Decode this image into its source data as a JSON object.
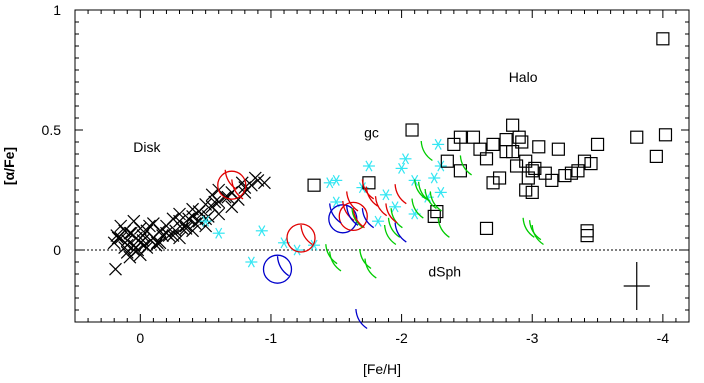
{
  "chart_data": {
    "type": "scatter",
    "title": "",
    "xlabel": "[Fe/H]",
    "ylabel": "[α/Fe]",
    "xlim": [
      0.5,
      -4.2
    ],
    "ylim": [
      -0.3,
      1.0
    ],
    "x_ticks": [
      0,
      -1,
      -2,
      -3,
      -4
    ],
    "x_tick_labels": [
      "0",
      "-1",
      "-2",
      "-3",
      "-4"
    ],
    "y_ticks": [
      0,
      0.5,
      1
    ],
    "y_tick_labels": [
      "0",
      "0.5",
      "1"
    ],
    "reference_line_y": 0,
    "annotations": [
      {
        "text": "Disk",
        "x": -0.05,
        "y": 0.43
      },
      {
        "text": "gc",
        "x": -1.77,
        "y": 0.49
      },
      {
        "text": "Halo",
        "x": -2.93,
        "y": 0.72
      },
      {
        "text": "dSph",
        "x": -2.33,
        "y": -0.09
      }
    ],
    "error_bar": {
      "x": -3.8,
      "y": -0.15,
      "dx": 0.1,
      "dy": 0.1
    },
    "colors": {
      "disk": "#000000",
      "halo": "#000000",
      "gc": "#33e6f2",
      "dsph_green": "#00cc00",
      "dsph_red": "#e00000",
      "dsph_blue": "#0000cc"
    },
    "series": [
      {
        "group": "disk",
        "marker": "x",
        "color": "#000000",
        "x": [
          0.2,
          0.18,
          0.15,
          0.12,
          0.1,
          0.08,
          0.05,
          0.03,
          0.0,
          -0.02,
          -0.05,
          -0.08,
          0.0,
          0.05,
          0.1,
          -0.1,
          -0.15,
          -0.2,
          -0.25,
          -0.3,
          -0.35,
          -0.4,
          -0.45,
          -0.5,
          -0.55,
          -0.6,
          -0.65,
          -0.7,
          -0.75,
          -0.8,
          -0.85,
          -0.9,
          0.15,
          0.1,
          0.05,
          0.0,
          -0.05,
          -0.1,
          -0.15,
          -0.2,
          -0.25,
          -0.3,
          -0.35,
          -0.4,
          -0.45,
          -0.5,
          -0.55,
          -0.6,
          -0.7,
          -0.8,
          0.12,
          0.08,
          -0.02,
          -0.12,
          -0.22,
          -0.32,
          -0.42,
          -0.52,
          0.17,
          0.02,
          -0.07,
          -0.17,
          -0.27,
          -0.37,
          -0.47,
          -0.57,
          -0.67,
          -0.3,
          -0.4,
          -0.5,
          -0.6,
          -0.78,
          -0.88,
          -0.95,
          0.07,
          -0.03,
          -0.13,
          0.19
        ],
        "y": [
          0.03,
          0.06,
          0.05,
          0.08,
          0.04,
          0.07,
          0.02,
          0.05,
          0.03,
          0.06,
          0.01,
          0.04,
          0.09,
          0.0,
          -0.01,
          0.05,
          0.08,
          0.1,
          0.06,
          0.12,
          0.09,
          0.14,
          0.16,
          0.13,
          0.18,
          0.2,
          0.22,
          0.24,
          0.21,
          0.26,
          0.27,
          0.29,
          0.1,
          0.02,
          0.12,
          -0.02,
          0.08,
          0.11,
          0.03,
          0.07,
          0.13,
          0.15,
          0.1,
          0.17,
          0.12,
          0.19,
          0.23,
          0.25,
          0.18,
          0.24,
          0.01,
          -0.03,
          0.04,
          0.02,
          0.06,
          0.09,
          0.11,
          0.14,
          0.05,
          0.0,
          0.1,
          0.06,
          0.08,
          0.13,
          0.15,
          0.2,
          0.22,
          0.05,
          0.08,
          0.1,
          0.15,
          0.28,
          0.3,
          0.28,
          0.07,
          0.02,
          0.03,
          -0.08
        ]
      },
      {
        "group": "gc",
        "marker": "asterisk",
        "color": "#33e6f2",
        "x": [
          -0.5,
          -0.6,
          -0.85,
          -0.93,
          -1.2,
          -1.33,
          -1.45,
          -1.5,
          -1.5,
          -1.7,
          -1.75,
          -1.82,
          -1.88,
          -1.95,
          -2.0,
          -2.03,
          -2.1,
          -2.2,
          -2.25,
          -2.28,
          -2.3,
          -2.3,
          -2.1,
          -1.1
        ],
        "y": [
          0.12,
          0.07,
          -0.05,
          0.08,
          0.0,
          0.02,
          0.28,
          0.29,
          0.2,
          0.26,
          0.35,
          0.12,
          0.23,
          0.18,
          0.34,
          0.38,
          0.29,
          0.22,
          0.3,
          0.44,
          0.35,
          0.24,
          0.15,
          0.03
        ]
      },
      {
        "group": "halo",
        "marker": "square",
        "color": "#000000",
        "x": [
          -1.33,
          -1.75,
          -2.08,
          -2.27,
          -2.35,
          -2.4,
          -2.45,
          -2.55,
          -2.6,
          -2.65,
          -2.7,
          -2.75,
          -2.8,
          -2.8,
          -2.85,
          -2.88,
          -2.9,
          -2.92,
          -2.95,
          -2.97,
          -3.0,
          -3.02,
          -3.05,
          -3.1,
          -3.15,
          -3.2,
          -3.25,
          -3.35,
          -3.4,
          -3.45,
          -3.5,
          -3.8,
          -3.95,
          -4.0,
          -4.02,
          -3.42,
          -3.42,
          -2.65,
          -2.95,
          -3.0,
          -3.3,
          -2.25,
          -2.45,
          -2.7,
          -2.85
        ],
        "y": [
          0.27,
          0.28,
          0.5,
          0.16,
          0.37,
          0.44,
          0.33,
          0.47,
          0.42,
          0.38,
          0.28,
          0.3,
          0.46,
          0.41,
          0.52,
          0.35,
          0.47,
          0.45,
          0.37,
          0.3,
          0.24,
          0.34,
          0.43,
          0.32,
          0.29,
          0.42,
          0.31,
          0.33,
          0.37,
          0.36,
          0.44,
          0.47,
          0.39,
          0.88,
          0.48,
          0.08,
          0.06,
          0.09,
          0.25,
          0.33,
          0.32,
          0.14,
          0.47,
          0.44,
          0.41
        ]
      },
      {
        "group": "dSph",
        "marker": "tripod",
        "color": "#00cc00",
        "x": [
          -1.42,
          -1.45,
          -1.62,
          -1.68,
          -1.72,
          -1.87,
          -1.9,
          -1.92,
          -2.08,
          -2.1,
          -2.13,
          -2.15,
          -2.18,
          -2.22,
          -2.28,
          -2.45,
          -2.93,
          -2.98,
          -3.0
        ],
        "y": [
          -0.03,
          -0.06,
          0.12,
          -0.05,
          -0.09,
          0.05,
          0.08,
          0.12,
          0.16,
          0.24,
          0.23,
          0.4,
          0.2,
          0.19,
          0.08,
          0.34,
          0.08,
          0.07,
          0.05
        ]
      },
      {
        "group": "dSph",
        "marker": "tripod",
        "color": "#e00000",
        "x": [
          -0.65,
          -0.7,
          -1.23,
          -1.55,
          -1.58,
          -1.63,
          -1.7,
          -1.73,
          -1.8,
          -1.88,
          -1.95
        ],
        "y": [
          0.28,
          0.24,
          0.05,
          0.15,
          0.19,
          0.12,
          0.24,
          0.21,
          0.17,
          0.14,
          0.22
        ]
      },
      {
        "group": "dSph",
        "marker": "tripod",
        "color": "#0000cc",
        "x": [
          -1.05,
          -1.45,
          -1.58,
          -1.65,
          -1.7,
          -1.95
        ],
        "y": [
          -0.08,
          0.14,
          0.13,
          -0.3,
          0.12,
          0.06
        ]
      },
      {
        "group": "dSph",
        "marker": "circle",
        "color": "#0000cc",
        "x": [
          -1.05,
          -1.55
        ],
        "y": [
          -0.08,
          0.13
        ]
      },
      {
        "group": "dSph",
        "marker": "circle",
        "color": "#e00000",
        "x": [
          -0.7,
          -1.23,
          -1.63
        ],
        "y": [
          0.27,
          0.05,
          0.14
        ]
      }
    ]
  }
}
